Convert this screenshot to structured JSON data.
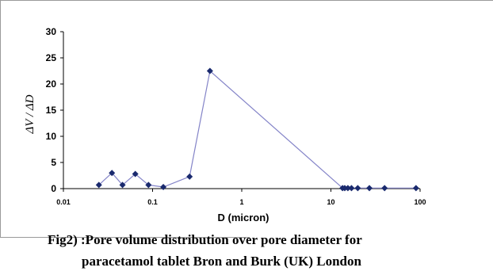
{
  "chart_data": {
    "type": "line",
    "xscale": "log",
    "xlabel": "D (micron)",
    "ylabel": "ΔV / ΔD",
    "xlim": [
      0.01,
      100
    ],
    "ylim": [
      0,
      30
    ],
    "x_ticks": [
      "0.01",
      "0.1",
      "1",
      "10",
      "100"
    ],
    "y_ticks": [
      "0",
      "5",
      "10",
      "15",
      "20",
      "25",
      "30"
    ],
    "grid": false,
    "legend": "none",
    "series": [
      {
        "color": "#8484c8",
        "marker_color": "#1a2a6e",
        "points": [
          {
            "x": 0.025,
            "y": 0.7
          },
          {
            "x": 0.035,
            "y": 3.0
          },
          {
            "x": 0.046,
            "y": 0.7
          },
          {
            "x": 0.064,
            "y": 2.8
          },
          {
            "x": 0.09,
            "y": 0.7
          },
          {
            "x": 0.132,
            "y": 0.3
          },
          {
            "x": 0.26,
            "y": 2.3
          },
          {
            "x": 0.44,
            "y": 22.5
          },
          {
            "x": 13.5,
            "y": 0.1
          },
          {
            "x": 14.3,
            "y": 0.1
          },
          {
            "x": 15.5,
            "y": 0.1
          },
          {
            "x": 17,
            "y": 0.1
          },
          {
            "x": 20,
            "y": 0.1
          },
          {
            "x": 27,
            "y": 0.1
          },
          {
            "x": 40,
            "y": 0.1
          },
          {
            "x": 90,
            "y": 0.1
          }
        ]
      }
    ]
  },
  "caption": {
    "line1": "Fig2) :Pore volume distribution over pore diameter for",
    "line2": "paracetamol tablet  Bron and Burk (UK) London"
  }
}
